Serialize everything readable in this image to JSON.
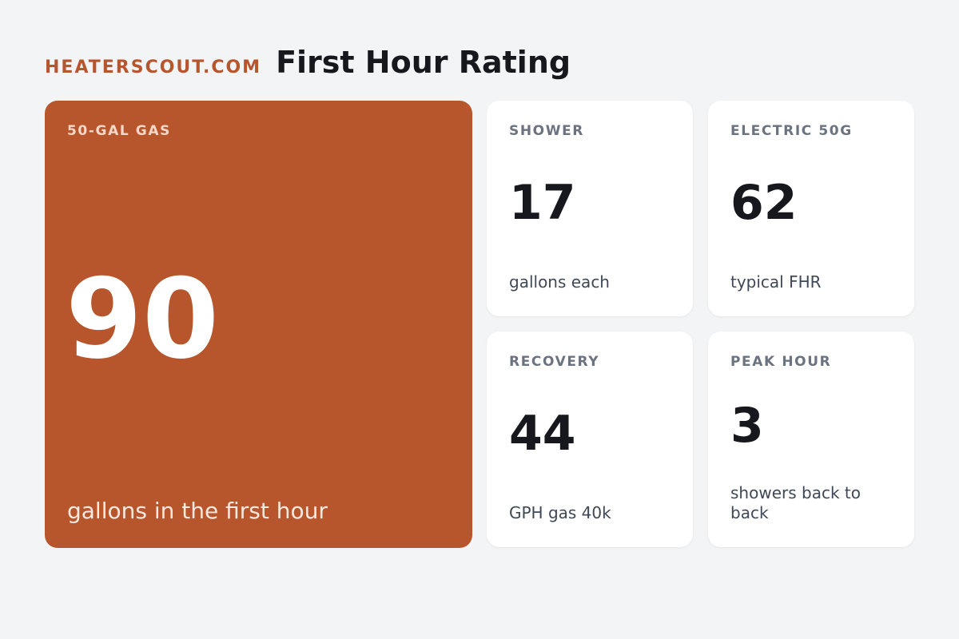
{
  "header": {
    "brand": "HEATERSCOUT.COM",
    "title": "First Hour Rating"
  },
  "hero": {
    "label": "50-GAL GAS",
    "value": "90",
    "caption": "gallons in the first hour"
  },
  "cards": [
    {
      "label": "SHOWER",
      "value": "17",
      "caption": "gallons each"
    },
    {
      "label": "ELECTRIC 50G",
      "value": "62",
      "caption": "typical FHR"
    },
    {
      "label": "RECOVERY",
      "value": "44",
      "caption": "GPH gas 40k"
    },
    {
      "label": "PEAK HOUR",
      "value": "3",
      "caption": "showers back to back"
    }
  ],
  "colors": {
    "accent": "#b7552c",
    "background": "#f3f4f6",
    "card": "#ffffff",
    "text_dark": "#16181d",
    "text_muted": "#6b7280"
  }
}
